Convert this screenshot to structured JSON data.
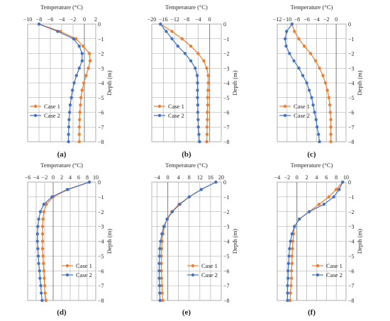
{
  "colors": {
    "case1": "#ED7D31",
    "case2": "#4472C4",
    "grid": "#a6a6a6",
    "axis": "#7f7f7f"
  },
  "chart_data": [
    {
      "type": "line",
      "panel": "(a)",
      "xlabel": "Temperature (°C)",
      "ylabel": "Depth (m)",
      "xlim": [
        -10,
        2
      ],
      "xticks": [
        -10,
        -8,
        -6,
        -4,
        -2,
        0,
        2
      ],
      "ylim": [
        -8,
        0
      ],
      "yticks": [
        0,
        -1,
        -2,
        -3,
        -4,
        -5,
        -6,
        -7,
        -8
      ],
      "grid": true,
      "legend": "left",
      "series": [
        {
          "name": "Case 1",
          "y": [
            0,
            -0.5,
            -1,
            -1.5,
            -2,
            -2.5,
            -3,
            -3.5,
            -4,
            -4.5,
            -5,
            -5.5,
            -6,
            -6.5,
            -7,
            -7.5,
            -8
          ],
          "x": [
            -8,
            -4.2,
            -1.5,
            -0.2,
            0.9,
            1.0,
            0.7,
            0.3,
            -0.1,
            -0.4,
            -0.6,
            -0.7,
            -0.8,
            -0.85,
            -0.9,
            -0.9,
            -0.9
          ]
        },
        {
          "name": "Case 2",
          "y": [
            0,
            -0.5,
            -1,
            -1.5,
            -2,
            -2.5,
            -3,
            -3.5,
            -4,
            -4.5,
            -5,
            -5.5,
            -6,
            -6.5,
            -7,
            -7.5,
            -8
          ],
          "x": [
            -8,
            -4.7,
            -1.9,
            -0.9,
            -0.4,
            -0.4,
            -0.9,
            -1.4,
            -1.8,
            -2.1,
            -2.3,
            -2.5,
            -2.6,
            -2.7,
            -2.75,
            -2.8,
            -2.8
          ]
        }
      ]
    },
    {
      "type": "line",
      "panel": "(b)",
      "xlabel": "Temperature (°C)",
      "ylabel": "Depth (m)",
      "xlim": [
        -20,
        4
      ],
      "xticks": [
        -20,
        -16,
        -12,
        -8,
        -4,
        0
      ],
      "ylim": [
        -8,
        0
      ],
      "yticks": [
        0,
        -1,
        -2,
        -3,
        -4,
        -5,
        -6,
        -7,
        -8
      ],
      "grid": true,
      "legend": "left",
      "series": [
        {
          "name": "Case 1",
          "y": [
            0,
            -0.5,
            -1,
            -1.5,
            -2,
            -2.5,
            -3,
            -3.5,
            -4,
            -4.5,
            -5,
            -5.5,
            -6,
            -6.5,
            -7,
            -7.5,
            -8
          ],
          "x": [
            -17,
            -13,
            -9.5,
            -6.5,
            -4,
            -2,
            -1,
            -0.5,
            -0.5,
            -0.6,
            -0.7,
            -0.7,
            -0.8,
            -0.8,
            -0.9,
            -0.9,
            -1.0
          ]
        },
        {
          "name": "Case 2",
          "y": [
            0,
            -0.5,
            -1,
            -1.5,
            -2,
            -2.5,
            -3,
            -3.5,
            -4,
            -4.5,
            -5,
            -5.5,
            -6,
            -6.5,
            -7,
            -7.5,
            -8
          ],
          "x": [
            -17,
            -15,
            -13,
            -11,
            -8.5,
            -6.5,
            -5,
            -4.3,
            -4.2,
            -4.2,
            -4.2,
            -4.1,
            -4.1,
            -4.0,
            -3.9,
            -3.7,
            -3.5
          ]
        }
      ]
    },
    {
      "type": "line",
      "panel": "(c)",
      "xlabel": "Temperature (°C)",
      "ylabel": "Depth (m)",
      "xlim": [
        -12,
        2
      ],
      "xticks": [
        -12,
        -10,
        -8,
        -6,
        -4,
        -2,
        0
      ],
      "ylim": [
        -8,
        0
      ],
      "yticks": [
        0,
        -1,
        -2,
        -3,
        -4,
        -5,
        -6,
        -7,
        -8
      ],
      "grid": true,
      "legend": "left",
      "series": [
        {
          "name": "Case 1",
          "y": [
            0,
            -0.5,
            -1,
            -1.5,
            -2,
            -2.5,
            -3,
            -3.5,
            -4,
            -4.5,
            -5,
            -5.5,
            -6,
            -6.5,
            -7,
            -7.5,
            -8
          ],
          "x": [
            -9,
            -8.5,
            -7.6,
            -6.5,
            -5.2,
            -4.2,
            -3.4,
            -2.7,
            -2.2,
            -1.8,
            -1.5,
            -1.3,
            -1.2,
            -1.1,
            -1.1,
            -1.1,
            -1.1
          ]
        },
        {
          "name": "Case 2",
          "y": [
            0,
            -0.5,
            -1,
            -1.5,
            -2,
            -2.5,
            -3,
            -3.5,
            -4,
            -4.5,
            -5,
            -5.5,
            -6,
            -6.5,
            -7,
            -7.5,
            -8
          ],
          "x": [
            -9,
            -10.1,
            -10.4,
            -10.2,
            -9.5,
            -8.6,
            -7.6,
            -6.8,
            -6.0,
            -5.5,
            -5.0,
            -4.7,
            -4.4,
            -4.1,
            -3.9,
            -3.6,
            -3.4
          ]
        }
      ]
    },
    {
      "type": "line",
      "panel": "(d)",
      "xlabel": "Temperature (°C)",
      "ylabel": "Depth (m)",
      "xlim": [
        -6,
        10
      ],
      "xticks": [
        -6,
        -4,
        -2,
        0,
        2,
        4,
        6,
        8,
        10
      ],
      "ylim": [
        -8,
        0
      ],
      "yticks": [
        0,
        -1,
        -2,
        -3,
        -4,
        -5,
        -6,
        -7,
        -8
      ],
      "grid": true,
      "legend": "right",
      "series": [
        {
          "name": "Case 1",
          "y": [
            0,
            -0.5,
            -1,
            -1.5,
            -2,
            -2.5,
            -3,
            -3.5,
            -4,
            -4.5,
            -5,
            -5.5,
            -6,
            -6.5,
            -7,
            -7.5,
            -8
          ],
          "x": [
            8.5,
            3.5,
            0,
            -1.6,
            -2.2,
            -2.4,
            -2.5,
            -2.5,
            -2.5,
            -2.5,
            -2.4,
            -2.3,
            -2.2,
            -2.1,
            -2.0,
            -1.9,
            -1.7
          ]
        },
        {
          "name": "Case 2",
          "y": [
            0,
            -0.5,
            -1,
            -1.5,
            -2,
            -2.5,
            -3,
            -3.5,
            -4,
            -4.5,
            -5,
            -5.5,
            -6,
            -6.5,
            -7,
            -7.5,
            -8
          ],
          "x": [
            8.5,
            3.3,
            -0.3,
            -2.2,
            -3.0,
            -3.4,
            -3.6,
            -3.7,
            -3.7,
            -3.6,
            -3.5,
            -3.4,
            -3.2,
            -3.1,
            -2.9,
            -2.8,
            -2.6
          ]
        }
      ]
    },
    {
      "type": "line",
      "panel": "(e)",
      "xlabel": "Temperature (°C)",
      "ylabel": "Depth (m)",
      "xlim": [
        -6,
        20
      ],
      "xticks": [
        -4,
        0,
        4,
        8,
        12,
        16,
        20
      ],
      "ylim": [
        -8,
        0
      ],
      "yticks": [
        0,
        -1,
        -2,
        -3,
        -4,
        -5,
        -6,
        -7,
        -8
      ],
      "grid": true,
      "legend": "right",
      "series": [
        {
          "name": "Case 1",
          "y": [
            0,
            -0.5,
            -1,
            -1.5,
            -2,
            -2.5,
            -3,
            -3.5,
            -4,
            -4.5,
            -5,
            -5.5,
            -6,
            -6.5,
            -7,
            -7.5,
            -8
          ],
          "x": [
            18,
            12.5,
            8,
            4.2,
            1.5,
            -0.3,
            -1.2,
            -1.8,
            -2.1,
            -2.3,
            -2.4,
            -2.4,
            -2.4,
            -2.3,
            -2.2,
            -2.1,
            -1.9
          ]
        },
        {
          "name": "Case 2",
          "y": [
            0,
            -0.5,
            -1,
            -1.5,
            -2,
            -2.5,
            -3,
            -3.5,
            -4,
            -4.5,
            -5,
            -5.5,
            -6,
            -6.5,
            -7,
            -7.5,
            -8
          ],
          "x": [
            18,
            12.5,
            8,
            4.5,
            1.7,
            -0.2,
            -1.5,
            -2.2,
            -2.7,
            -3.0,
            -3.1,
            -3.2,
            -3.2,
            -3.2,
            -3.1,
            -3.0,
            -2.9
          ]
        }
      ]
    },
    {
      "type": "line",
      "panel": "(f)",
      "xlabel": "Temperature (°C)",
      "ylabel": "Depth (m)",
      "xlim": [
        -4,
        10
      ],
      "xticks": [
        -4,
        -2,
        0,
        2,
        4,
        6,
        8,
        10
      ],
      "ylim": [
        -8,
        0
      ],
      "yticks": [
        0,
        -1,
        -2,
        -3,
        -4,
        -5,
        -6,
        -7,
        -8
      ],
      "grid": true,
      "legend": "right",
      "series": [
        {
          "name": "Case 1",
          "y": [
            0,
            -0.5,
            -1,
            -1.5,
            -2,
            -2.5,
            -3,
            -3.5,
            -4,
            -4.5,
            -5,
            -5.5,
            -6,
            -6.5,
            -7,
            -7.5,
            -8
          ],
          "x": [
            9.3,
            8.0,
            6.5,
            4.5,
            2.5,
            0.5,
            -0.5,
            -0.7,
            -0.8,
            -0.9,
            -1.0,
            -1.0,
            -1.1,
            -1.1,
            -1.2,
            -1.3,
            -1.4
          ]
        },
        {
          "name": "Case 2",
          "y": [
            0,
            -0.5,
            -1,
            -1.5,
            -2,
            -2.5,
            -3,
            -3.5,
            -4,
            -4.5,
            -5,
            -5.5,
            -6,
            -6.5,
            -7,
            -7.5,
            -8
          ],
          "x": [
            9.3,
            8.6,
            7.5,
            5.5,
            2.5,
            0.5,
            -0.5,
            -1.0,
            -1.3,
            -1.5,
            -1.6,
            -1.7,
            -1.8,
            -1.8,
            -1.9,
            -1.9,
            -1.9
          ]
        }
      ]
    }
  ]
}
